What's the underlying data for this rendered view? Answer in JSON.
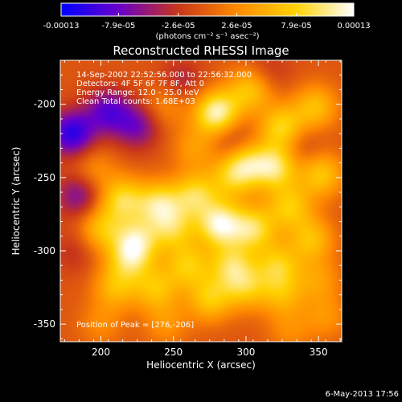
{
  "colorbar": {
    "tick_labels": [
      "-0.00013",
      "-7.9e-05",
      "-2.6e-05",
      "2.6e-05",
      "7.9e-05",
      "0.00013"
    ],
    "tick_values": [
      -0.00013,
      -7.9e-05,
      -2.6e-05,
      2.6e-05,
      7.9e-05,
      0.00013
    ],
    "range": [
      -0.00013,
      0.00013
    ],
    "unit_label": "(photons cm⁻² s⁻¹ asec⁻²)",
    "colors": [
      "#0000ff",
      "#6a00c8",
      "#c8361a",
      "#ff8a00",
      "#ffd200",
      "#ffffff"
    ]
  },
  "chart_data": {
    "type": "heatmap",
    "title": "Reconstructed RHESSI Image",
    "xlabel": "Heliocentric X (arcsec)",
    "ylabel": "Heliocentric Y (arcsec)",
    "xlim": [
      172,
      366
    ],
    "ylim": [
      -362,
      -170
    ],
    "x_ticks": [
      200,
      250,
      300,
      350
    ],
    "y_ticks": [
      -200,
      -250,
      -300,
      -350
    ],
    "grid": false,
    "annotations": [
      "14-Sep-2002 22:52:56.000 to 22:56:32.000",
      "Detectors: 4F 5F 6F 7F 8F, Att 0",
      "Energy Range: 12.0 - 25.0 keV",
      "Clean    Total counts: 1.68E+03"
    ],
    "peak_label": "Position of Peak = [276,-206]",
    "peak": [
      276,
      -206
    ],
    "value_range": [
      -0.00013,
      0.00013
    ],
    "sources": [
      {
        "x": 280,
        "y": -206,
        "intensity": 1.0
      },
      {
        "x": 303,
        "y": -190,
        "intensity": 0.6
      },
      {
        "x": 325,
        "y": -216,
        "intensity": 0.7
      },
      {
        "x": 348,
        "y": -202,
        "intensity": 0.55
      },
      {
        "x": 300,
        "y": -240,
        "intensity": 0.65
      },
      {
        "x": 320,
        "y": -243,
        "intensity": 0.8
      },
      {
        "x": 290,
        "y": -250,
        "intensity": 0.5
      },
      {
        "x": 352,
        "y": -248,
        "intensity": 0.6
      },
      {
        "x": 215,
        "y": -265,
        "intensity": 0.7
      },
      {
        "x": 240,
        "y": -268,
        "intensity": 0.75
      },
      {
        "x": 265,
        "y": -262,
        "intensity": 0.7
      },
      {
        "x": 282,
        "y": -282,
        "intensity": 0.95
      },
      {
        "x": 305,
        "y": -285,
        "intensity": 0.75
      },
      {
        "x": 330,
        "y": -270,
        "intensity": 0.6
      },
      {
        "x": 345,
        "y": -292,
        "intensity": 0.55
      },
      {
        "x": 200,
        "y": -285,
        "intensity": 0.55
      },
      {
        "x": 225,
        "y": -292,
        "intensity": 0.65
      },
      {
        "x": 250,
        "y": -285,
        "intensity": 0.6
      },
      {
        "x": 220,
        "y": -305,
        "intensity": 0.65
      },
      {
        "x": 260,
        "y": -310,
        "intensity": 0.6
      },
      {
        "x": 290,
        "y": -310,
        "intensity": 0.65
      },
      {
        "x": 322,
        "y": -310,
        "intensity": 0.6
      },
      {
        "x": 210,
        "y": -325,
        "intensity": 0.5
      },
      {
        "x": 238,
        "y": -326,
        "intensity": 0.55
      },
      {
        "x": 275,
        "y": -333,
        "intensity": 0.6
      },
      {
        "x": 300,
        "y": -325,
        "intensity": 0.55
      },
      {
        "x": 325,
        "y": -330,
        "intensity": 0.45
      },
      {
        "x": 350,
        "y": -320,
        "intensity": 0.35
      },
      {
        "x": 195,
        "y": -245,
        "intensity": 0.3
      },
      {
        "x": 245,
        "y": -200,
        "intensity": 0.3
      },
      {
        "x": 265,
        "y": -230,
        "intensity": 0.35
      },
      {
        "x": 200,
        "y": -350,
        "intensity": 0.25
      },
      {
        "x": 245,
        "y": -350,
        "intensity": 0.3
      },
      {
        "x": 330,
        "y": -355,
        "intensity": 0.25
      },
      {
        "x": 355,
        "y": -345,
        "intensity": 0.3
      },
      {
        "x": 180,
        "y": -220,
        "intensity": -0.8
      },
      {
        "x": 205,
        "y": -205,
        "intensity": -0.6
      },
      {
        "x": 225,
        "y": -215,
        "intensity": -0.5
      },
      {
        "x": 185,
        "y": -262,
        "intensity": -0.5
      },
      {
        "x": 255,
        "y": -185,
        "intensity": -0.3
      },
      {
        "x": 315,
        "y": -178,
        "intensity": -0.2
      },
      {
        "x": 290,
        "y": -225,
        "intensity": -0.3
      },
      {
        "x": 338,
        "y": -228,
        "intensity": -0.2
      },
      {
        "x": 182,
        "y": -300,
        "intensity": -0.2
      }
    ]
  },
  "footer": {
    "timestamp": "6-May-2013 17:56"
  }
}
